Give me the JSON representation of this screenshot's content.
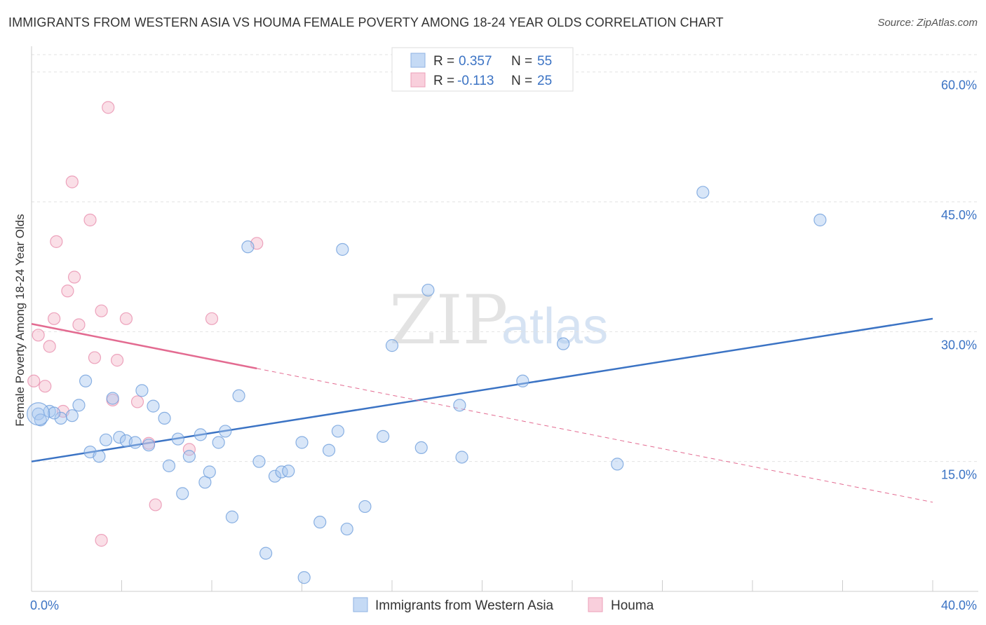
{
  "title": "IMMIGRANTS FROM WESTERN ASIA VS HOUMA FEMALE POVERTY AMONG 18-24 YEAR OLDS CORRELATION CHART",
  "source": "Source: ZipAtlas.com",
  "watermark": {
    "part1": "ZIP",
    "part2": "atlas"
  },
  "colors": {
    "blue": "#3b73c4",
    "blue_fill": "#a9c8ef",
    "pink": "#e36b91",
    "pink_fill": "#f4b7ca",
    "grid": "#dddddd"
  },
  "legend": {
    "rows": [
      {
        "r_label": "R = ",
        "r_value": "0.357",
        "n_label": "N = ",
        "n_value": "55"
      },
      {
        "r_label": "R = ",
        "r_value": "-0.113",
        "n_label": "N = ",
        "n_value": "25"
      }
    ]
  },
  "chart_data": {
    "type": "scatter",
    "xlabel": "",
    "ylabel": "Female Poverty Among 18-24 Year Olds",
    "xlim": [
      0,
      40
    ],
    "ylim": [
      0,
      62
    ],
    "x_tick_labels": [
      {
        "value": 0,
        "label": "0.0%"
      },
      {
        "value": 40,
        "label": "40.0%"
      }
    ],
    "y_tick_labels": [
      {
        "value": 15,
        "label": "15.0%"
      },
      {
        "value": 30,
        "label": "30.0%"
      },
      {
        "value": 45,
        "label": "45.0%"
      },
      {
        "value": 60,
        "label": "60.0%"
      }
    ],
    "grid": true,
    "series": [
      {
        "name": "Immigrants from Western Asia",
        "color": "#3b73c4",
        "r": 0.357,
        "n": 55,
        "trend": {
          "x": [
            0,
            40
          ],
          "y": [
            15.0,
            31.5
          ]
        },
        "points": [
          [
            0.3,
            20.5
          ],
          [
            0.8,
            20.8
          ],
          [
            1.3,
            20.0
          ],
          [
            1.8,
            20.3
          ],
          [
            2.1,
            21.5
          ],
          [
            2.4,
            24.3
          ],
          [
            2.6,
            16.1
          ],
          [
            3.0,
            15.6
          ],
          [
            3.3,
            17.5
          ],
          [
            3.6,
            22.3
          ],
          [
            3.9,
            17.8
          ],
          [
            4.2,
            17.4
          ],
          [
            4.6,
            17.2
          ],
          [
            4.9,
            23.2
          ],
          [
            5.2,
            16.9
          ],
          [
            5.4,
            21.4
          ],
          [
            5.9,
            20.0
          ],
          [
            6.1,
            14.5
          ],
          [
            6.5,
            17.6
          ],
          [
            6.7,
            11.3
          ],
          [
            7.0,
            15.6
          ],
          [
            7.5,
            18.1
          ],
          [
            7.7,
            12.6
          ],
          [
            7.9,
            13.8
          ],
          [
            8.3,
            17.2
          ],
          [
            8.6,
            18.5
          ],
          [
            8.9,
            8.6
          ],
          [
            9.2,
            22.6
          ],
          [
            9.6,
            39.8
          ],
          [
            10.1,
            15.0
          ],
          [
            10.4,
            4.4
          ],
          [
            10.8,
            13.3
          ],
          [
            11.1,
            13.8
          ],
          [
            11.4,
            13.9
          ],
          [
            12.0,
            17.2
          ],
          [
            12.1,
            1.6
          ],
          [
            12.8,
            8.0
          ],
          [
            13.2,
            16.3
          ],
          [
            13.6,
            18.5
          ],
          [
            13.8,
            39.5
          ],
          [
            14.0,
            7.2
          ],
          [
            14.8,
            9.8
          ],
          [
            15.6,
            17.9
          ],
          [
            16.0,
            28.4
          ],
          [
            17.3,
            16.6
          ],
          [
            17.6,
            34.8
          ],
          [
            19.0,
            21.5
          ],
          [
            19.1,
            15.5
          ],
          [
            21.8,
            24.3
          ],
          [
            23.6,
            28.6
          ],
          [
            26.0,
            14.7
          ],
          [
            29.8,
            46.1
          ],
          [
            35.0,
            42.9
          ],
          [
            0.4,
            19.8
          ],
          [
            1.0,
            20.6
          ]
        ]
      },
      {
        "name": "Houma",
        "color": "#e36b91",
        "r": -0.113,
        "n": 25,
        "trend": {
          "x": [
            0,
            40
          ],
          "y": [
            30.9,
            10.3
          ],
          "solid_until_x": 10.0
        },
        "points": [
          [
            0.1,
            24.3
          ],
          [
            0.3,
            29.6
          ],
          [
            0.6,
            23.7
          ],
          [
            0.8,
            28.3
          ],
          [
            1.0,
            31.5
          ],
          [
            1.1,
            40.4
          ],
          [
            1.4,
            20.8
          ],
          [
            1.6,
            34.7
          ],
          [
            1.8,
            47.3
          ],
          [
            1.9,
            36.3
          ],
          [
            2.1,
            30.8
          ],
          [
            2.6,
            42.9
          ],
          [
            2.8,
            27.0
          ],
          [
            3.1,
            32.4
          ],
          [
            3.1,
            5.9
          ],
          [
            3.4,
            55.9
          ],
          [
            3.6,
            22.1
          ],
          [
            3.8,
            26.7
          ],
          [
            4.2,
            31.5
          ],
          [
            4.7,
            21.9
          ],
          [
            5.2,
            17.1
          ],
          [
            5.5,
            10.0
          ],
          [
            7.0,
            16.4
          ],
          [
            8.0,
            31.5
          ],
          [
            10.0,
            40.2
          ]
        ]
      }
    ]
  }
}
